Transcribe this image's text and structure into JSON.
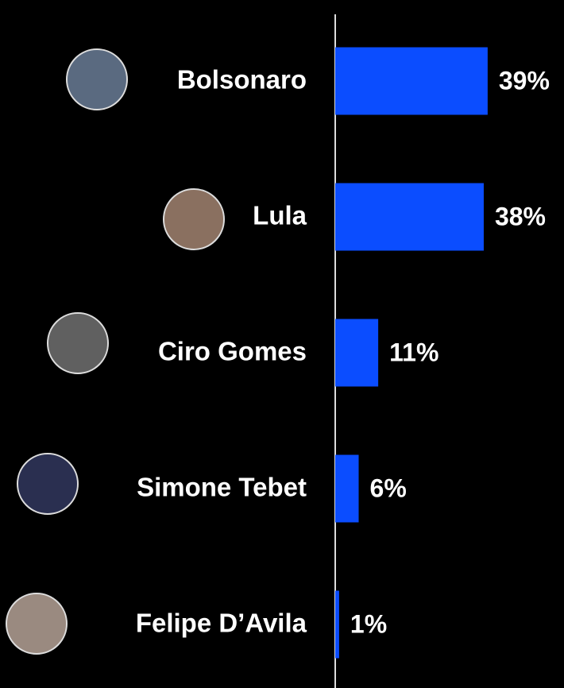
{
  "chart_data": {
    "type": "bar",
    "orientation": "horizontal",
    "categories": [
      "Bolsonaro",
      "Lula",
      "Ciro Gomes",
      "Simone Tebet",
      "Felipe D’Avila"
    ],
    "values": [
      39,
      38,
      11,
      6,
      1
    ],
    "value_labels": [
      "39%",
      "38%",
      "11%",
      "6%",
      "1%"
    ],
    "color": "#0b4dff"
  }
}
